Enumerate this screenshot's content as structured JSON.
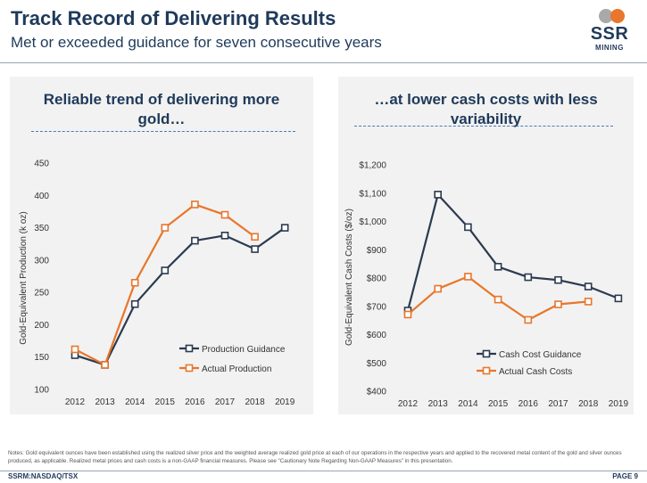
{
  "header": {
    "title": "Track Record of Delivering Results",
    "subtitle": "Met or exceeded guidance for seven consecutive years"
  },
  "logo": {
    "top": "SSR",
    "bottom": "MINING"
  },
  "colors": {
    "navy": "#2b3a4f",
    "orange": "#e8762c",
    "panel": "#f2f2f2"
  },
  "notes": "Notes: Gold equivalent ounces have been established using the realized silver price and the weighted average realized gold price at each of our operations in the respective years and applied to the recovered metal content of the gold and silver ounces produced, as applicable. Realized metal prices and cash costs is a  non-GAAP financial measures. Please see \"Cautionary Note Regarding Non-GAAP Measures\" in this presentation.",
  "footer": {
    "ticker": "SSRM:NASDAQ/TSX",
    "page": "PAGE 9"
  },
  "chart_data": [
    {
      "type": "line",
      "title": "Reliable trend of delivering more gold…",
      "title_lines": [
        "Reliable trend of delivering more",
        "gold…"
      ],
      "xlabel": "",
      "ylabel": "Gold-Equivalent Production (k oz)",
      "x": [
        "2012",
        "2013",
        "2014",
        "2015",
        "2016",
        "2017",
        "2018",
        "2019"
      ],
      "ylim": [
        100,
        450
      ],
      "yticks": [
        100,
        150,
        200,
        250,
        300,
        350,
        400,
        450
      ],
      "yticklabels": [
        "100",
        "150",
        "200",
        "250",
        "300",
        "350",
        "400",
        "450"
      ],
      "grid": false,
      "legend": "bottom-right",
      "series": [
        {
          "name": "Production Guidance",
          "color": "#2b3a4f",
          "values": [
            153,
            138,
            232,
            284,
            330,
            338,
            317,
            350
          ]
        },
        {
          "name": "Actual Production",
          "color": "#e8762c",
          "values": [
            162,
            138,
            265,
            350,
            386,
            370,
            336,
            null
          ]
        }
      ]
    },
    {
      "type": "line",
      "title": "…at lower cash costs with less variability",
      "title_lines": [
        "…at lower cash costs with less",
        "variability"
      ],
      "xlabel": "",
      "ylabel": "Gold-Equivalent Cash Costs ($/oz)",
      "x": [
        "2012",
        "2013",
        "2014",
        "2015",
        "2016",
        "2017",
        "2018",
        "2019"
      ],
      "ylim": [
        400,
        1200
      ],
      "yticks": [
        400,
        500,
        600,
        700,
        800,
        900,
        1000,
        1100,
        1200
      ],
      "yticklabels": [
        "$400",
        "$500",
        "$600",
        "$700",
        "$800",
        "$900",
        "$1,000",
        "$1,100",
        "$1,200"
      ],
      "grid": false,
      "legend": "bottom-right",
      "series": [
        {
          "name": "Cash Cost Guidance",
          "color": "#2b3a4f",
          "values": [
            685,
            1095,
            980,
            840,
            803,
            793,
            770,
            728
          ]
        },
        {
          "name": "Actual Cash Costs",
          "color": "#e8762c",
          "values": [
            671,
            762,
            805,
            724,
            652,
            707,
            717,
            null
          ]
        }
      ]
    }
  ]
}
